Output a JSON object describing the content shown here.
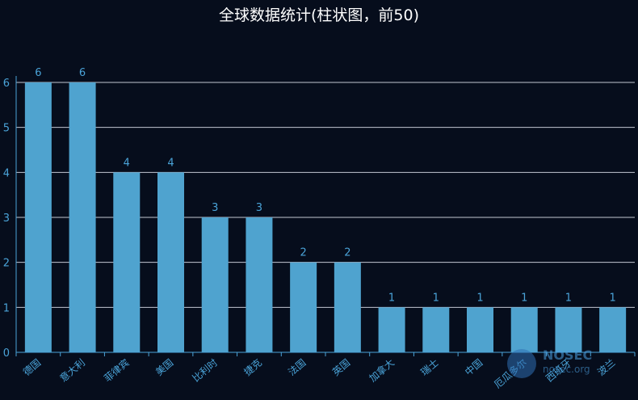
{
  "chart_data": {
    "type": "bar",
    "title": "全球数据统计(柱状图，前50)",
    "categories": [
      "德国",
      "意大利",
      "菲律宾",
      "美国",
      "比利时",
      "捷克",
      "法国",
      "英国",
      "加拿大",
      "瑞士",
      "中国",
      "厄瓜多尔",
      "西班牙",
      "波兰"
    ],
    "values": [
      6,
      6,
      4,
      4,
      3,
      3,
      2,
      2,
      1,
      1,
      1,
      1,
      1,
      1
    ],
    "ylim": [
      0,
      6
    ],
    "yticks": [
      0,
      1,
      2,
      3,
      4,
      5,
      6
    ],
    "grid": true,
    "data_labels": true,
    "bar_color": "#4fa3cf",
    "text_color": "#4aa3d8",
    "background": "#060d1c"
  },
  "watermark": {
    "name": "NOSEC",
    "url": "nosec.org"
  }
}
